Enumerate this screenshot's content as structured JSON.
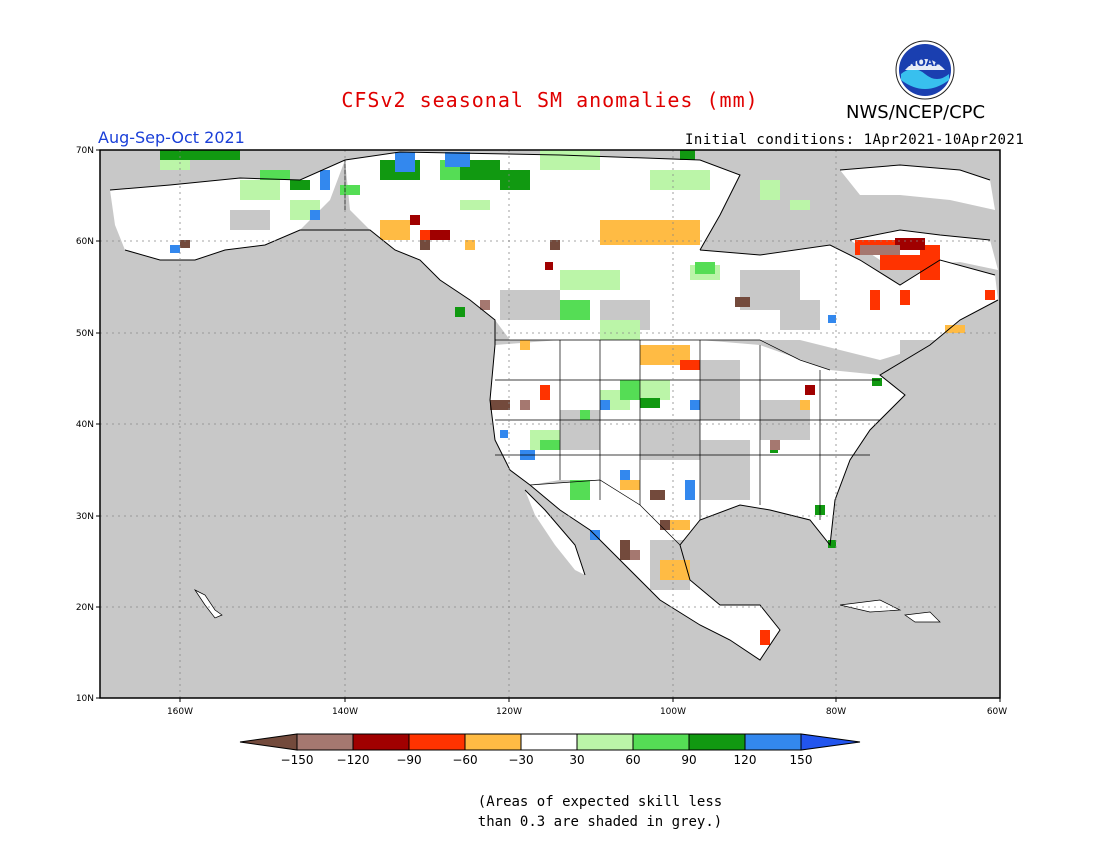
{
  "header": {
    "title": "CFSv2 seasonal SM anomalies (mm)",
    "org": "NWS/NCEP/CPC",
    "season": "Aug-Sep-Oct 2021",
    "initial_conditions": "Initial conditions: 1Apr2021-10Apr2021",
    "logo_text": "NOAA"
  },
  "map": {
    "lat_labels": [
      "70N",
      "60N",
      "50N",
      "40N",
      "30N",
      "20N",
      "10N"
    ],
    "lon_labels": [
      "160W",
      "140W",
      "120W",
      "100W",
      "80W",
      "60W"
    ],
    "background_color": "#c8c8c8"
  },
  "legend": {
    "ticks": [
      "−150",
      "−120",
      "−90",
      "−60",
      "−30",
      "30",
      "60",
      "90",
      "120",
      "150"
    ],
    "colors": [
      "#734a3c",
      "#a57870",
      "#a00000",
      "#ff3300",
      "#ffbb44",
      "#ffffff",
      "#bbf5a8",
      "#55dd55",
      "#119911",
      "#3388ee",
      "#2255ee"
    ]
  },
  "note": {
    "line1": "(Areas of expected skill less",
    "line2": "than 0.3 are shaded in grey.)"
  }
}
